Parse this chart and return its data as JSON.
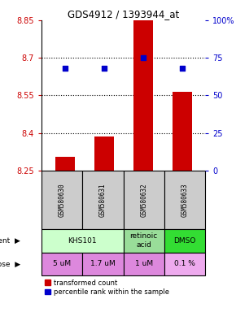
{
  "title": "GDS4912 / 1393944_at",
  "samples": [
    "GSM580630",
    "GSM580631",
    "GSM580632",
    "GSM580633"
  ],
  "bar_values": [
    8.305,
    8.385,
    8.855,
    8.565
  ],
  "bar_bottom": 8.25,
  "blue_values": [
    68,
    68,
    75,
    68
  ],
  "ylim_left": [
    8.25,
    8.85
  ],
  "ylim_right": [
    0,
    100
  ],
  "yticks_left": [
    8.25,
    8.4,
    8.55,
    8.7,
    8.85
  ],
  "yticks_right": [
    0,
    25,
    50,
    75,
    100
  ],
  "ytick_labels_right": [
    "0",
    "25",
    "50",
    "75",
    "100%"
  ],
  "hlines": [
    8.4,
    8.55,
    8.7
  ],
  "dose_divider": [
    1
  ],
  "agents_unique": [
    {
      "label": "KHS101",
      "start": 0,
      "end": 2,
      "color": "#ccffcc"
    },
    {
      "label": "retinoic\nacid",
      "start": 2,
      "end": 3,
      "color": "#99dd99"
    },
    {
      "label": "DMSO",
      "start": 3,
      "end": 4,
      "color": "#33dd33"
    }
  ],
  "doses": [
    "5 uM",
    "1.7 uM",
    "1 uM",
    "0.1 %"
  ],
  "dose_colors": [
    "#dd88dd",
    "#dd88dd",
    "#dd88dd",
    "#eeaaee"
  ],
  "bar_color": "#cc0000",
  "blue_color": "#0000cc",
  "left_axis_color": "#cc0000",
  "right_axis_color": "#0000cc",
  "sample_box_color": "#cccccc",
  "legend_red_label": "transformed count",
  "legend_blue_label": "percentile rank within the sample"
}
